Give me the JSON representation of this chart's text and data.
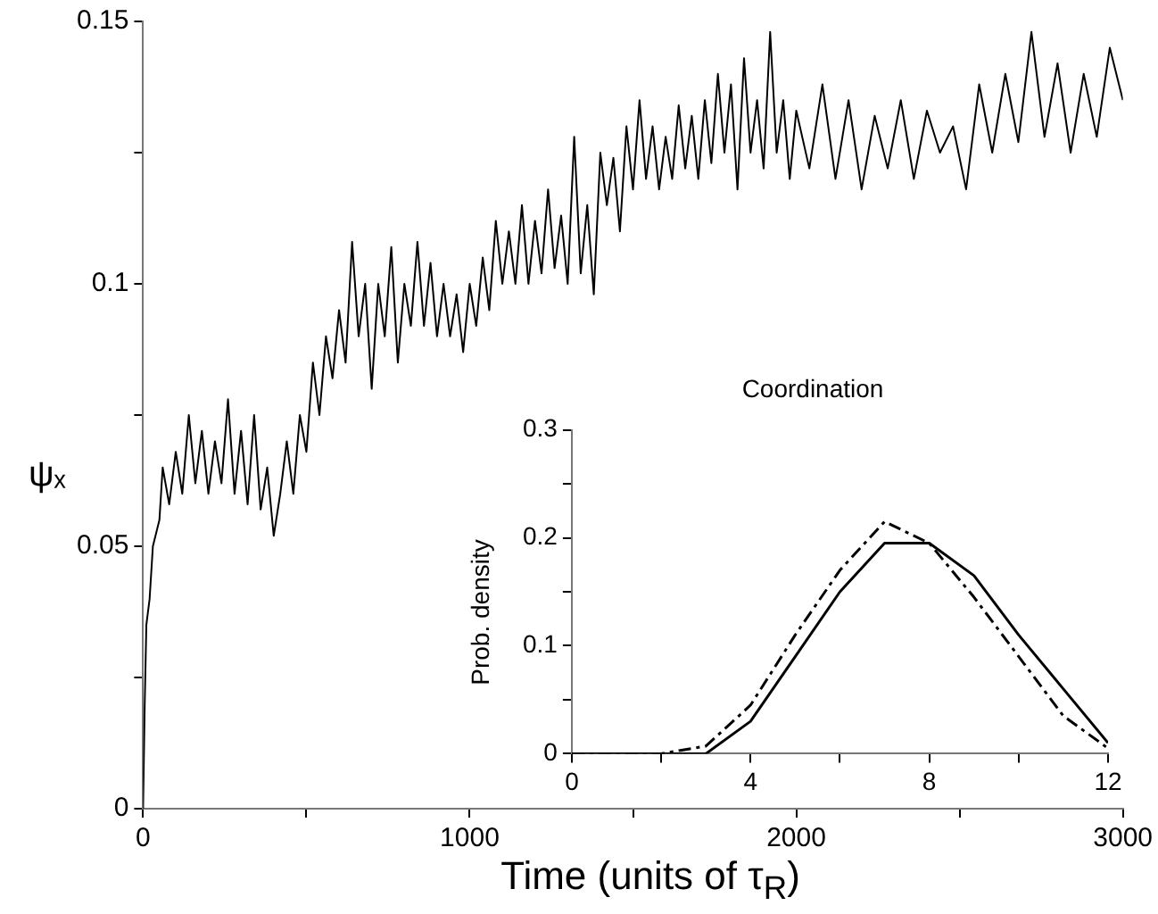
{
  "chart_data": [
    {
      "type": "line",
      "xlabel": "Time (units of τ$_{R}$)",
      "ylabel": "ψₓ",
      "xlim": [
        0,
        3000
      ],
      "xticks": [
        0,
        {
          "value": 500,
          "label": null
        },
        1000,
        {
          "value": 1500,
          "label": null
        },
        2000,
        {
          "value": 2500,
          "label": null
        },
        3000
      ],
      "ylim": [
        0,
        0.15
      ],
      "yticks": [
        0,
        {
          "value": 0.025,
          "label": null
        },
        0.05,
        {
          "value": 0.075,
          "label": null
        },
        0.1,
        {
          "value": 0.125,
          "label": null
        },
        0.15
      ],
      "grid": false,
      "legend": false,
      "series": [
        {
          "color": "#000000",
          "line_style": "solid",
          "x": [
            0,
            5,
            10,
            20,
            30,
            50,
            60,
            80,
            100,
            120,
            140,
            160,
            180,
            200,
            220,
            240,
            260,
            280,
            300,
            320,
            340,
            360,
            380,
            400,
            420,
            440,
            460,
            480,
            500,
            520,
            540,
            560,
            580,
            600,
            620,
            640,
            660,
            680,
            700,
            720,
            740,
            760,
            780,
            800,
            820,
            840,
            860,
            880,
            900,
            920,
            940,
            960,
            980,
            1000,
            1020,
            1040,
            1060,
            1080,
            1100,
            1120,
            1140,
            1160,
            1180,
            1200,
            1220,
            1240,
            1260,
            1280,
            1300,
            1320,
            1340,
            1360,
            1380,
            1400,
            1420,
            1440,
            1460,
            1480,
            1500,
            1520,
            1540,
            1560,
            1580,
            1600,
            1620,
            1640,
            1660,
            1680,
            1700,
            1720,
            1740,
            1760,
            1780,
            1800,
            1820,
            1840,
            1860,
            1880,
            1900,
            1920,
            1940,
            1960,
            1980,
            2000,
            2040,
            2080,
            2120,
            2160,
            2200,
            2240,
            2280,
            2320,
            2360,
            2400,
            2440,
            2480,
            2520,
            2560,
            2600,
            2640,
            2680,
            2720,
            2760,
            2800,
            2840,
            2880,
            2920,
            2960,
            3000
          ],
          "values": [
            0,
            0.02,
            0.035,
            0.04,
            0.05,
            0.055,
            0.065,
            0.058,
            0.068,
            0.06,
            0.075,
            0.062,
            0.072,
            0.06,
            0.07,
            0.062,
            0.078,
            0.06,
            0.072,
            0.058,
            0.075,
            0.057,
            0.065,
            0.052,
            0.06,
            0.07,
            0.06,
            0.075,
            0.068,
            0.085,
            0.075,
            0.09,
            0.082,
            0.095,
            0.085,
            0.108,
            0.09,
            0.1,
            0.08,
            0.1,
            0.09,
            0.107,
            0.085,
            0.1,
            0.092,
            0.108,
            0.092,
            0.104,
            0.09,
            0.1,
            0.09,
            0.098,
            0.087,
            0.1,
            0.092,
            0.105,
            0.095,
            0.112,
            0.1,
            0.11,
            0.1,
            0.115,
            0.1,
            0.112,
            0.102,
            0.118,
            0.103,
            0.113,
            0.1,
            0.128,
            0.102,
            0.115,
            0.098,
            0.125,
            0.115,
            0.124,
            0.11,
            0.13,
            0.118,
            0.135,
            0.12,
            0.13,
            0.118,
            0.128,
            0.12,
            0.134,
            0.122,
            0.132,
            0.12,
            0.135,
            0.123,
            0.14,
            0.125,
            0.138,
            0.118,
            0.143,
            0.125,
            0.135,
            0.122,
            0.148,
            0.125,
            0.135,
            0.12,
            0.133,
            0.122,
            0.138,
            0.12,
            0.135,
            0.118,
            0.132,
            0.122,
            0.135,
            0.12,
            0.133,
            0.125,
            0.13,
            0.118,
            0.138,
            0.125,
            0.14,
            0.127,
            0.148,
            0.128,
            0.142,
            0.125,
            0.14,
            0.128,
            0.145,
            0.135
          ]
        }
      ]
    },
    {
      "type": "line",
      "title": "Coordination",
      "ylabel": "Prob. density",
      "xlim": [
        0,
        12
      ],
      "xticks": [
        0,
        {
          "value": 2,
          "label": null
        },
        4,
        {
          "value": 6,
          "label": null
        },
        8,
        {
          "value": 10,
          "label": null
        },
        12
      ],
      "ylim": [
        0,
        0.3
      ],
      "yticks": [
        0,
        {
          "value": 0.05,
          "label": null
        },
        0.1,
        {
          "value": 0.15,
          "label": null
        },
        0.2,
        {
          "value": 0.25,
          "label": null
        },
        0.3
      ],
      "grid": false,
      "legend": false,
      "series": [
        {
          "color": "#000000",
          "line_style": "solid",
          "x": [
            0,
            1,
            2,
            3,
            4,
            5,
            6,
            7,
            8,
            9,
            10,
            11,
            12
          ],
          "values": [
            0,
            0,
            0,
            0,
            0.03,
            0.09,
            0.15,
            0.195,
            0.195,
            0.165,
            0.11,
            0.06,
            0.01
          ]
        },
        {
          "color": "#000000",
          "line_style": "dashed",
          "x": [
            0,
            1,
            2,
            3,
            4,
            5,
            6,
            7,
            8,
            9,
            10,
            11,
            12
          ],
          "values": [
            0,
            0,
            0,
            0.007,
            0.045,
            0.11,
            0.17,
            0.215,
            0.195,
            0.145,
            0.09,
            0.035,
            0.005
          ]
        }
      ]
    }
  ]
}
